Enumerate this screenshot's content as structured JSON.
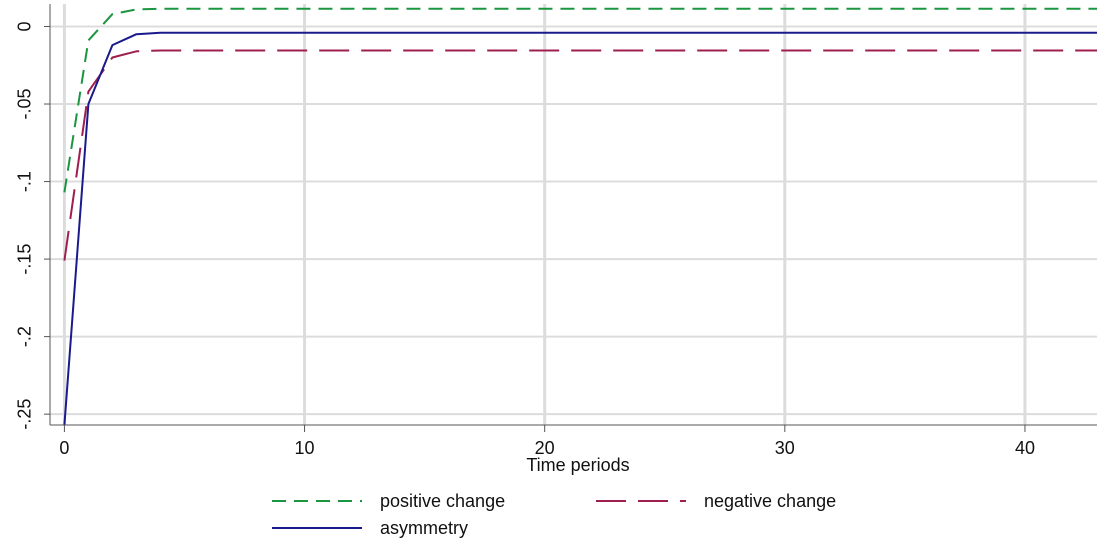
{
  "chart_data": {
    "type": "line",
    "title": "",
    "xlabel": "Time periods",
    "ylabel": "",
    "xlim": [
      -0.6,
      43
    ],
    "ylim": [
      -0.257,
      0.0145
    ],
    "grid": true,
    "legend_position": "bottom",
    "x_ticks": [
      0,
      10,
      20,
      30,
      40
    ],
    "x_tick_labels": [
      "0",
      "10",
      "20",
      "30",
      "40"
    ],
    "y_ticks": [
      0,
      -0.05,
      -0.1,
      -0.15,
      -0.2,
      -0.25
    ],
    "y_tick_labels": [
      "0",
      "-.05",
      "-.1",
      "-.15",
      "-.2",
      "-.25"
    ],
    "series": [
      {
        "name": "positive change",
        "color": "#1a9641",
        "style": "short-dash",
        "x": [
          0,
          1,
          2,
          3,
          4,
          5,
          6,
          43
        ],
        "y": [
          -0.107,
          -0.009,
          0.008,
          0.011,
          0.0115,
          0.0115,
          0.0115,
          0.0115
        ]
      },
      {
        "name": "negative change",
        "color": "#9e1f4f",
        "style": "long-dash",
        "x": [
          0,
          1,
          2,
          3,
          4,
          5,
          6,
          43
        ],
        "y": [
          -0.151,
          -0.042,
          -0.02,
          -0.016,
          -0.0155,
          -0.0155,
          -0.0155,
          -0.0155
        ]
      },
      {
        "name": "asymmetry",
        "color": "#1a1a8c",
        "style": "solid",
        "x": [
          0,
          1,
          2,
          3,
          4,
          5,
          6,
          43
        ],
        "y": [
          -0.257,
          -0.05,
          -0.012,
          -0.005,
          -0.004,
          -0.004,
          -0.004,
          -0.004
        ]
      }
    ]
  }
}
